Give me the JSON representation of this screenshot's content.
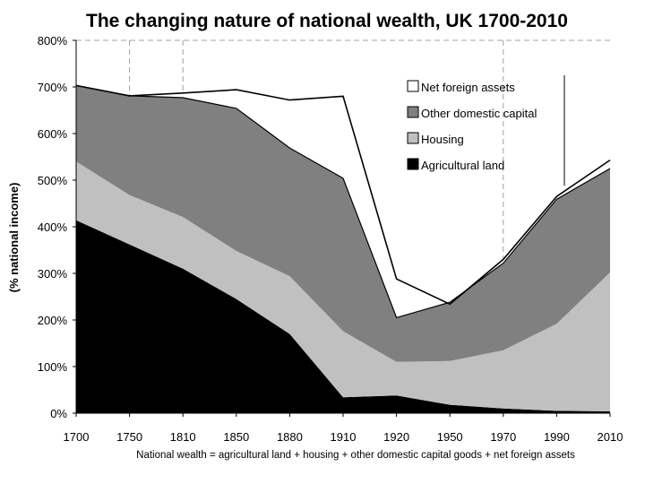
{
  "chart_data": {
    "type": "area",
    "title": "The changing nature of national wealth, UK 1700-2010",
    "ylabel": "(% national income)",
    "xlabel": "National wealth = agricultural land + housing + other domestic capital goods + net foreign assets",
    "x": [
      1700,
      1750,
      1810,
      1850,
      1880,
      1910,
      1920,
      1950,
      1970,
      1990,
      2010
    ],
    "x_tick_labels": [
      "1700",
      "1750",
      "1810",
      "1850",
      "1880",
      "1910",
      "1920",
      "1950",
      "1970",
      "1990",
      "2010"
    ],
    "ylim": [
      0,
      800
    ],
    "y_ticks": [
      0,
      100,
      200,
      300,
      400,
      500,
      600,
      700,
      800
    ],
    "y_tick_labels": [
      "0%",
      "100%",
      "200%",
      "300%",
      "400%",
      "500%",
      "600%",
      "700%",
      "800%"
    ],
    "series": [
      {
        "name": "Agricultural land",
        "color": "#000000",
        "values": [
          414,
          362,
          310,
          245,
          170,
          34,
          38,
          18,
          10,
          5,
          4
        ]
      },
      {
        "name": "Housing",
        "color": "#c0c0c0",
        "values": [
          126,
          106,
          111,
          103,
          124,
          142,
          72,
          94,
          125,
          187,
          298
        ]
      },
      {
        "name": "Other domestic capital",
        "color": "#808080",
        "values": [
          163,
          213,
          256,
          306,
          275,
          328,
          95,
          126,
          187,
          267,
          223
        ]
      },
      {
        "name": "Net foreign assets",
        "color": "#ffffff",
        "values": [
          0,
          0,
          10,
          40,
          103,
          176,
          83,
          -4,
          8,
          6,
          18
        ]
      }
    ],
    "legend_order": [
      "Net foreign assets",
      "Other domestic capital",
      "Housing",
      "Agricultural land"
    ],
    "legend_position": "top-right"
  }
}
